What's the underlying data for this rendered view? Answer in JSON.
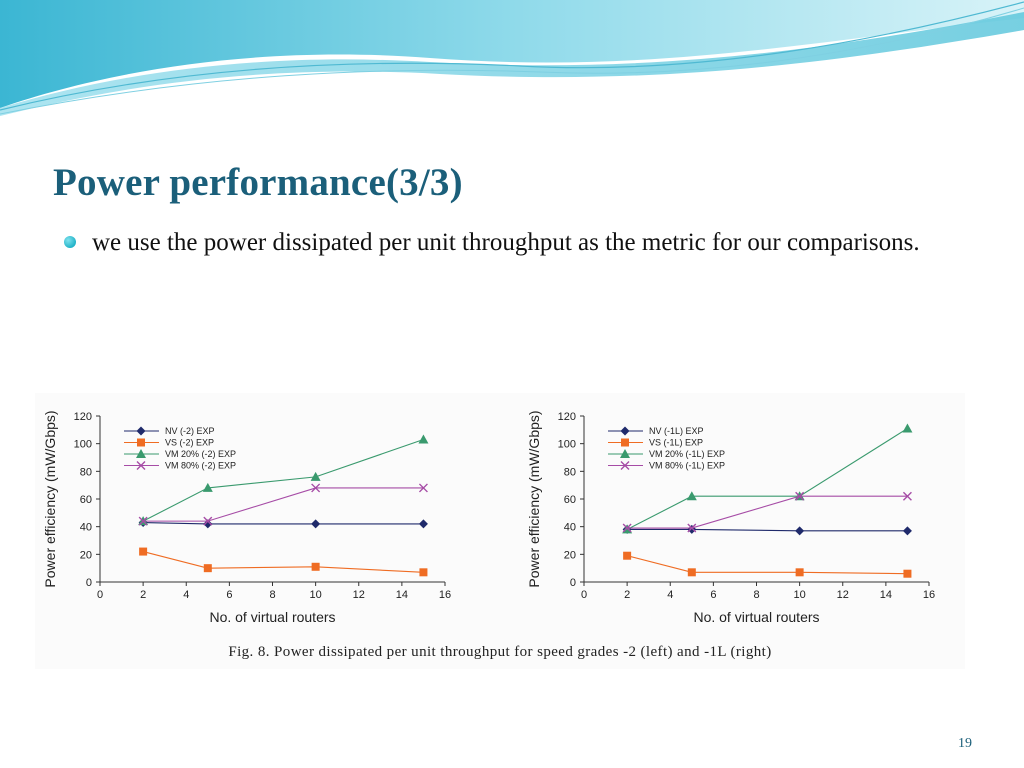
{
  "slide": {
    "title": "Power performance(3/3)",
    "bullet": "we use the power dissipated per unit throughput as the metric for our comparisons.",
    "caption": "Fig. 8.   Power dissipated per unit throughput for speed grades -2 (left) and -1L (right)",
    "page_number": "19",
    "colors": {
      "title": "#1b5f7a",
      "bullet": "#22b3c8",
      "wave": "#5fc7dc"
    }
  },
  "chart_data": [
    {
      "type": "line",
      "xlabel": "No. of virtual routers",
      "ylabel": "Power efficiency (mW/Gbps)",
      "xlim": [
        0,
        16
      ],
      "ylim": [
        0,
        120
      ],
      "xticks": [
        0,
        2,
        4,
        6,
        8,
        10,
        12,
        14,
        16
      ],
      "yticks": [
        0,
        20,
        40,
        60,
        80,
        100,
        120
      ],
      "grid": false,
      "legend_position": "top-left",
      "x": [
        2,
        5,
        10,
        15
      ],
      "series": [
        {
          "name": "NV (-2) EXP",
          "values": [
            43,
            42,
            42,
            42
          ],
          "color": "#1f2a6b",
          "marker": "diamond"
        },
        {
          "name": "VS (-2) EXP",
          "values": [
            22,
            10,
            11,
            7
          ],
          "color": "#ef6c23",
          "marker": "square"
        },
        {
          "name": "VM 20% (-2) EXP",
          "values": [
            44,
            68,
            76,
            103
          ],
          "color": "#3a9a6e",
          "marker": "triangle"
        },
        {
          "name": "VM 80% (-2) EXP",
          "values": [
            44,
            44,
            68,
            68
          ],
          "color": "#a64ca6",
          "marker": "x"
        }
      ]
    },
    {
      "type": "line",
      "xlabel": "No. of virtual routers",
      "ylabel": "Power efficiency (mW/Gbps)",
      "xlim": [
        0,
        16
      ],
      "ylim": [
        0,
        120
      ],
      "xticks": [
        0,
        2,
        4,
        6,
        8,
        10,
        12,
        14,
        16
      ],
      "yticks": [
        0,
        20,
        40,
        60,
        80,
        100,
        120
      ],
      "grid": false,
      "legend_position": "top-left",
      "x": [
        2,
        5,
        10,
        15
      ],
      "series": [
        {
          "name": "NV (-1L) EXP",
          "values": [
            38,
            38,
            37,
            37
          ],
          "color": "#1f2a6b",
          "marker": "diamond"
        },
        {
          "name": "VS (-1L) EXP",
          "values": [
            19,
            7,
            7,
            6
          ],
          "color": "#ef6c23",
          "marker": "square"
        },
        {
          "name": "VM 20% (-1L) EXP",
          "values": [
            38,
            62,
            62,
            111
          ],
          "color": "#3a9a6e",
          "marker": "triangle"
        },
        {
          "name": "VM 80% (-1L) EXP",
          "values": [
            39,
            39,
            62,
            62
          ],
          "color": "#a64ca6",
          "marker": "x"
        }
      ]
    }
  ]
}
